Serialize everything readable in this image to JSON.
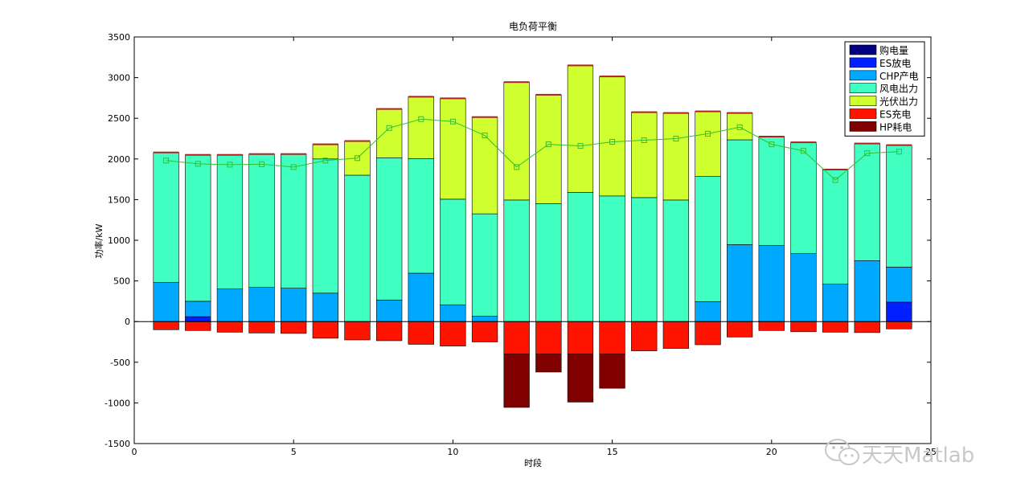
{
  "chart_data": {
    "type": "bar",
    "title": "电负荷平衡",
    "xlabel": "时段",
    "ylabel": "功率/kW",
    "xlim": [
      0,
      25
    ],
    "ylim": [
      -1500,
      3500
    ],
    "xticks": [
      0,
      5,
      10,
      15,
      20,
      25
    ],
    "xtick_labels": [
      "0",
      "5",
      "10",
      "15",
      "20",
      "25"
    ],
    "yticks": [
      -1500,
      -1000,
      -500,
      0,
      500,
      1000,
      1500,
      2000,
      2500,
      3000,
      3500
    ],
    "ytick_labels": [
      "-1500",
      "-1000",
      "-500",
      "0",
      "500",
      "1000",
      "1500",
      "2000",
      "2500",
      "3000",
      "3500"
    ],
    "grid": false,
    "legend_position": "top-right",
    "x": [
      1,
      2,
      3,
      4,
      5,
      6,
      7,
      8,
      9,
      10,
      11,
      12,
      13,
      14,
      15,
      16,
      17,
      18,
      19,
      20,
      21,
      22,
      23,
      24
    ],
    "series": [
      {
        "name": "购电量",
        "color": "#000080",
        "values": [
          0,
          0,
          0,
          0,
          0,
          0,
          0,
          0,
          0,
          0,
          0,
          0,
          0,
          0,
          0,
          0,
          0,
          0,
          0,
          0,
          0,
          0,
          0,
          0
        ]
      },
      {
        "name": "ES放电",
        "color": "#0020ff",
        "values": [
          0,
          60,
          0,
          0,
          0,
          0,
          0,
          0,
          0,
          0,
          0,
          0,
          0,
          0,
          0,
          0,
          0,
          0,
          0,
          0,
          0,
          0,
          0,
          240
        ]
      },
      {
        "name": "CHP产电",
        "color": "#00a8ff",
        "values": [
          480,
          190,
          400,
          420,
          410,
          350,
          0,
          265,
          595,
          205,
          65,
          0,
          0,
          0,
          0,
          0,
          0,
          245,
          945,
          935,
          835,
          460,
          750,
          430
        ]
      },
      {
        "name": "风电出力",
        "color": "#40ffc0",
        "values": [
          1600,
          1800,
          1650,
          1640,
          1650,
          1650,
          1800,
          1750,
          1410,
          1300,
          1260,
          1495,
          1450,
          1590,
          1545,
          1525,
          1495,
          1540,
          1290,
          1340,
          1370,
          1410,
          1440,
          1500
        ]
      },
      {
        "name": "光伏出力",
        "color": "#d0ff30",
        "values": [
          0,
          0,
          0,
          0,
          0,
          180,
          420,
          600,
          760,
          1240,
          1190,
          1450,
          1340,
          1560,
          1470,
          1050,
          1070,
          800,
          330,
          0,
          0,
          0,
          0,
          0
        ]
      },
      {
        "name": "ES充电",
        "color": "#ff1400",
        "values": [
          -100,
          -110,
          -130,
          -140,
          -145,
          -205,
          -225,
          -235,
          -280,
          -300,
          -250,
          -400,
          -400,
          -400,
          -400,
          -360,
          -330,
          -285,
          -190,
          -110,
          -125,
          -130,
          -135,
          -90
        ]
      },
      {
        "name": "HP耗电",
        "color": "#800000",
        "values": [
          0,
          0,
          0,
          0,
          0,
          0,
          0,
          0,
          0,
          0,
          0,
          -655,
          -220,
          -590,
          -420,
          0,
          0,
          0,
          0,
          0,
          0,
          0,
          0,
          0
        ]
      }
    ],
    "top_strip_color": "#b02020",
    "load_line": {
      "color": "#30c030",
      "marker": "square",
      "values": [
        1980,
        1940,
        1930,
        1935,
        1900,
        1980,
        2010,
        2380,
        2490,
        2460,
        2290,
        1900,
        2180,
        2160,
        2210,
        2230,
        2250,
        2310,
        2390,
        2180,
        2100,
        1740,
        2070,
        2090
      ]
    }
  },
  "watermark": {
    "text": "天天Matlab",
    "icon": "wechat-icon"
  }
}
